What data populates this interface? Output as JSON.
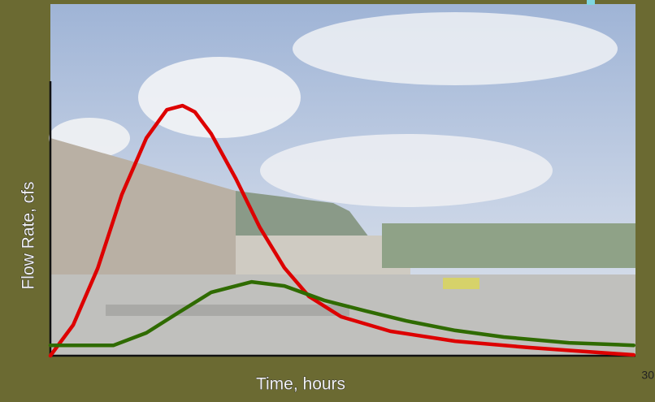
{
  "chart_data": {
    "type": "line",
    "y_label": "Flow Rate, cfs",
    "x_label": "Time, hours",
    "page_number": "30",
    "xlim": [
      0,
      100
    ],
    "ylim": [
      0,
      100
    ],
    "series": [
      {
        "color": "#dd0000",
        "x": [
          0,
          3.9,
          8.1,
          12.2,
          16.4,
          19.9,
          22.6,
          24.7,
          27.5,
          31.7,
          35.8,
          40,
          44.2,
          49.7,
          58.1,
          69.2,
          81.7,
          91.4,
          99.7
        ],
        "values": [
          0,
          11.2,
          31.9,
          58.6,
          79.3,
          89.6,
          91.1,
          88.8,
          80.8,
          64.5,
          46.7,
          32,
          21.6,
          14.2,
          8.9,
          5.3,
          3,
          1.5,
          0.3
        ]
      },
      {
        "color": "#2f6b00",
        "x": [
          0,
          5.3,
          10.8,
          16.4,
          21.9,
          27.5,
          34.4,
          40,
          46.9,
          53.9,
          60.8,
          69.2,
          77.5,
          88.6,
          99.7
        ],
        "values": [
          3.8,
          3.8,
          3.8,
          8.3,
          15.7,
          23.1,
          26.9,
          25.4,
          20.1,
          16.3,
          12.7,
          9.2,
          6.8,
          4.7,
          3.8
        ]
      }
    ]
  }
}
